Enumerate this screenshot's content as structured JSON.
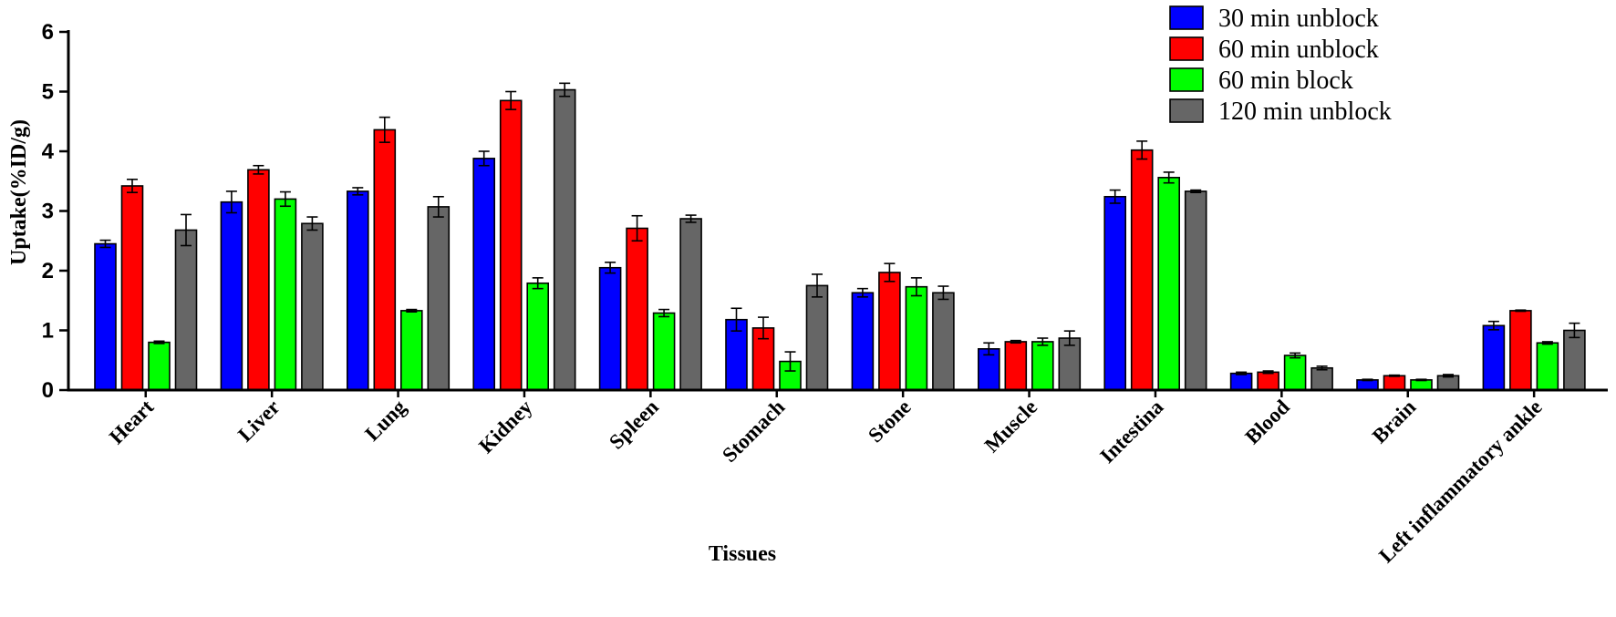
{
  "chart_data": {
    "type": "bar",
    "title": "",
    "xlabel": "Tissues",
    "ylabel": "Uptake(%ID/g)",
    "ylim": [
      0,
      6
    ],
    "yticks": [
      "0",
      "1",
      "2",
      "3",
      "4",
      "5",
      "6"
    ],
    "grid": false,
    "legend_position": "top-right",
    "categories": [
      "Heart",
      "Liver",
      "Lung",
      "Kidney",
      "Spleen",
      "Stomach",
      "Stone",
      "Muscle",
      "Intestina",
      "Blood",
      "Brain",
      "Left inflammatory ankle"
    ],
    "series": [
      {
        "name": "30 min unblock",
        "color": "#0000ff",
        "values": [
          2.45,
          3.15,
          3.33,
          3.88,
          2.05,
          1.18,
          1.63,
          0.69,
          3.24,
          0.28,
          0.17,
          1.08
        ],
        "errors": [
          0.06,
          0.18,
          0.06,
          0.12,
          0.09,
          0.19,
          0.07,
          0.1,
          0.11,
          0.02,
          0.01,
          0.07
        ]
      },
      {
        "name": "60 min unblock",
        "color": "#ff0000",
        "values": [
          3.42,
          3.69,
          4.36,
          4.85,
          2.71,
          1.04,
          1.97,
          0.81,
          4.02,
          0.3,
          0.24,
          1.33
        ],
        "errors": [
          0.11,
          0.07,
          0.21,
          0.15,
          0.21,
          0.18,
          0.15,
          0.02,
          0.15,
          0.02,
          0.01,
          0.01
        ]
      },
      {
        "name": "60 min block",
        "color": "#00ff00",
        "values": [
          0.8,
          3.2,
          1.33,
          1.79,
          1.29,
          0.48,
          1.73,
          0.81,
          3.56,
          0.58,
          0.17,
          0.79
        ],
        "errors": [
          0.02,
          0.12,
          0.02,
          0.09,
          0.06,
          0.16,
          0.15,
          0.06,
          0.09,
          0.04,
          0.01,
          0.02
        ]
      },
      {
        "name": "120 min unblock",
        "color": "#666666",
        "values": [
          2.68,
          2.79,
          3.07,
          5.03,
          2.87,
          1.75,
          1.63,
          0.87,
          3.33,
          0.37,
          0.24,
          1.0
        ],
        "errors": [
          0.26,
          0.11,
          0.17,
          0.11,
          0.06,
          0.19,
          0.11,
          0.12,
          0.02,
          0.03,
          0.02,
          0.12
        ]
      }
    ]
  }
}
